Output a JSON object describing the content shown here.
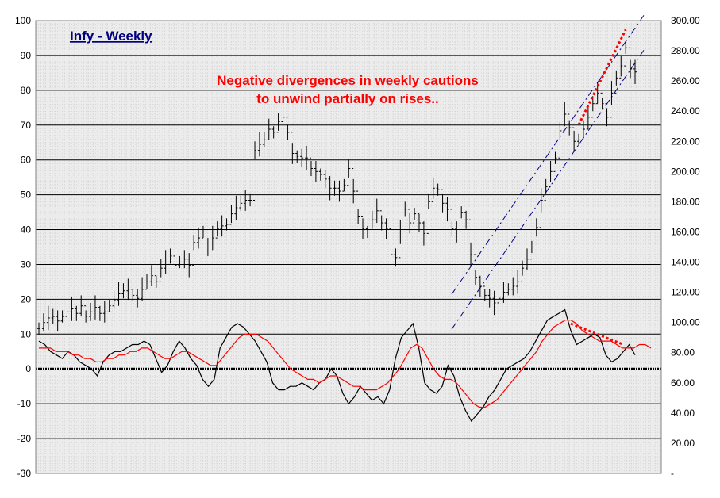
{
  "chart_data": {
    "type": "line",
    "title": "Infy - Weekly",
    "annotations": [
      "Negative divergences in weekly cautions",
      "to unwind partially on rises.."
    ],
    "left_axis": {
      "ylim": [
        -30,
        100
      ],
      "ticks": [
        "100",
        "90",
        "80",
        "70",
        "60",
        "50",
        "40",
        "30",
        "20",
        "10",
        "0",
        "-10",
        "-20",
        "-30"
      ]
    },
    "right_axis": {
      "ylim": [
        0,
        300
      ],
      "ticks": [
        "300.00",
        "280.00",
        "260.00",
        "240.00",
        "220.00",
        "200.00",
        "180.00",
        "160.00",
        "140.00",
        "120.00",
        "100.00",
        "80.00",
        "60.00",
        "40.00",
        "20.00",
        "-"
      ]
    },
    "grid": true,
    "colors": {
      "background": "#ffffff",
      "plot_background": "#ececec",
      "minor_grid": "#d4d4d4",
      "major_grid": "#000000",
      "price": "#000000",
      "oscillator": "#000000",
      "signal": "#ff0000",
      "channel": "#000080",
      "divergence": "#ff0000",
      "title": "#000080"
    },
    "series": [
      {
        "axis": "right",
        "values": [
          96,
          100,
          103,
          104,
          101,
          104,
          107,
          109,
          106,
          111,
          104,
          107,
          110,
          106,
          107,
          111,
          115,
          119,
          121,
          122,
          118,
          116,
          122,
          127,
          131,
          127,
          136,
          140,
          144,
          138,
          140,
          142,
          138,
          153,
          156,
          160,
          150,
          156,
          162,
          164,
          165,
          172,
          176,
          179,
          181,
          181,
          214,
          218,
          221,
          228,
          226,
          233,
          236,
          226,
          212,
          210,
          209,
          209,
          202,
          200,
          198,
          195,
          189,
          189,
          187,
          191,
          202,
          187,
          170,
          162,
          160,
          168,
          174,
          166,
          162,
          145,
          143,
          160,
          175,
          166,
          172,
          166,
          159,
          180,
          189,
          188,
          179,
          175,
          162,
          160,
          173,
          168,
          145,
          130,
          124,
          118,
          116,
          113,
          116,
          120,
          122,
          124,
          127,
          136,
          142,
          150,
          163,
          181,
          190,
          200,
          209,
          227,
          238,
          229,
          220,
          221,
          228,
          236,
          245,
          252,
          245,
          236,
          252,
          262,
          270,
          282,
          268,
          266
        ]
      },
      {
        "axis": "left",
        "values": [
          8,
          7,
          5,
          4,
          3,
          5,
          4,
          2,
          1,
          0,
          -2,
          2,
          4,
          5,
          5,
          6,
          7,
          7,
          8,
          7,
          3,
          -1,
          1,
          5,
          8,
          6,
          3,
          1,
          -3,
          -5,
          -3,
          6,
          9,
          12,
          13,
          12,
          10,
          8,
          5,
          2,
          -4,
          -6,
          -6,
          -5,
          -5,
          -4,
          -5,
          -6,
          -4,
          -3,
          0,
          -2,
          -7,
          -10,
          -8,
          -5,
          -7,
          -9,
          -8,
          -10,
          -6,
          3,
          9,
          11,
          13,
          6,
          -4,
          -6,
          -7,
          -5,
          1,
          -2,
          -8,
          -12,
          -15,
          -13,
          -11,
          -8,
          -6,
          -3,
          0,
          1,
          2,
          3,
          5,
          8,
          11,
          14,
          15,
          16,
          17,
          11,
          7,
          8,
          9,
          10,
          9,
          4,
          2,
          3,
          5,
          7,
          4
        ]
      },
      {
        "axis": "left",
        "values": [
          6,
          6,
          6,
          5,
          5,
          5,
          4,
          4,
          3,
          3,
          2,
          2,
          3,
          3,
          4,
          4,
          5,
          5,
          6,
          6,
          5,
          4,
          3,
          3,
          4,
          5,
          5,
          4,
          3,
          2,
          1,
          1,
          3,
          5,
          7,
          9,
          10,
          10,
          10,
          9,
          8,
          6,
          4,
          2,
          0,
          -1,
          -2,
          -3,
          -3,
          -4,
          -3,
          -2,
          -2,
          -3,
          -4,
          -5,
          -5,
          -6,
          -6,
          -6,
          -5,
          -4,
          -2,
          0,
          3,
          6,
          7,
          6,
          3,
          0,
          -2,
          -3,
          -3,
          -4,
          -6,
          -8,
          -10,
          -11,
          -11,
          -10,
          -9,
          -7,
          -5,
          -3,
          -1,
          1,
          3,
          5,
          8,
          10,
          12,
          13,
          14,
          14,
          13,
          11,
          10,
          9,
          8,
          8,
          8,
          7,
          6,
          6,
          6,
          7,
          7,
          6
        ]
      }
    ]
  }
}
